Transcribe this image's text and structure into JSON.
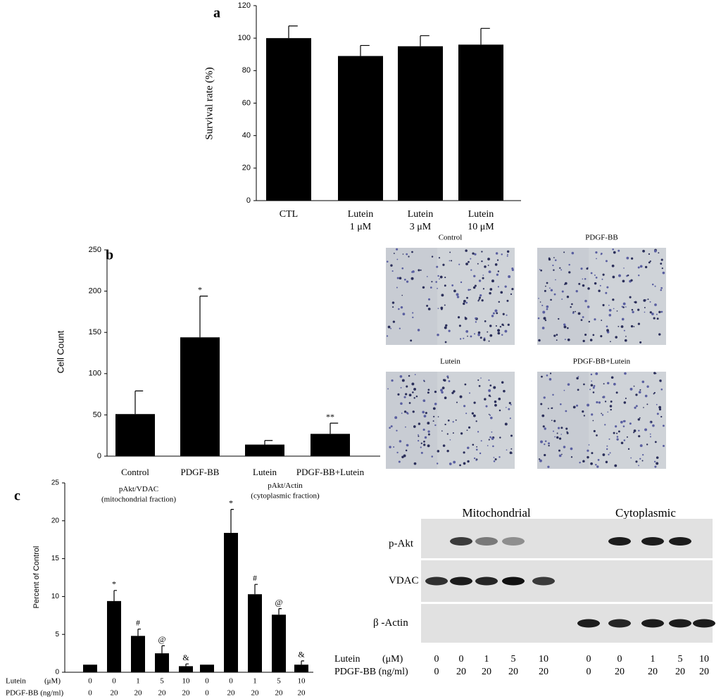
{
  "chart_data": [
    {
      "type": "bar",
      "label": "a",
      "y_label": "Survival rate (%)",
      "categories": [
        "CTL",
        "Lutein\n1 μM",
        "Lutein\n3 μM",
        "Lutein\n10 μM"
      ],
      "values": [
        100,
        89,
        95,
        96
      ],
      "errors": [
        7.5,
        6.5,
        6.5,
        10
      ],
      "color": "#000000",
      "ylim": [
        0,
        120
      ],
      "yticks": [
        0,
        20,
        40,
        60,
        80,
        100,
        120
      ]
    },
    {
      "type": "bar",
      "label": "b",
      "y_label": "Cell Count",
      "categories": [
        "Control",
        "PDGF-BB",
        "Lutein",
        "PDGF-BB+Lutein"
      ],
      "values": [
        51,
        144,
        14,
        27
      ],
      "errors": [
        28,
        50,
        5,
        13
      ],
      "annotations": [
        null,
        "*",
        null,
        "**"
      ],
      "color": "#000000",
      "ylim": [
        0,
        250
      ],
      "yticks": [
        0,
        50,
        100,
        150,
        200,
        250
      ]
    },
    {
      "type": "bar",
      "label": "c",
      "y_label": "Percent of Control",
      "group_labels": [
        "pAkt/VDAC\n(mitochondrial fraction)",
        "pAkt/Actin\n(cytoplasmic fraction)"
      ],
      "values": [
        1,
        9.4,
        4.8,
        2.5,
        0.8,
        1,
        18.4,
        10.3,
        7.6,
        1.0
      ],
      "errors": [
        0,
        1.4,
        0.9,
        1.0,
        0.3,
        0,
        3.1,
        1.3,
        0.8,
        0.5
      ],
      "annotations": [
        null,
        "*",
        "#",
        "@",
        "&",
        null,
        "*",
        "#",
        "@",
        "&"
      ],
      "conditions": [
        {
          "label": "Lutein",
          "unit": "(μM)",
          "values": [
            0,
            0,
            1,
            5,
            10,
            0,
            0,
            1,
            5,
            10
          ]
        },
        {
          "label": "PDGF-BB (ng/ml)",
          "values": [
            0,
            20,
            20,
            20,
            20,
            0,
            20,
            20,
            20,
            20
          ]
        }
      ],
      "color": "#000000",
      "ylim": [
        0,
        25
      ],
      "yticks": [
        0,
        5,
        10,
        15,
        20,
        25
      ]
    }
  ],
  "micrographs": [
    {
      "title": "Control"
    },
    {
      "title": "PDGF-BB"
    },
    {
      "title": "Lutein"
    },
    {
      "title": "PDGF-BB+Lutein"
    }
  ],
  "blot": {
    "groups": [
      "Mitochondrial",
      "Cytoplasmic"
    ],
    "rows": [
      "p-Akt",
      "VDAC",
      "β -Actin"
    ],
    "conditions": [
      {
        "label": "Lutein",
        "unit": "(μM)",
        "values": [
          0,
          0,
          1,
          5,
          10,
          0,
          0,
          1,
          5,
          10
        ]
      },
      {
        "label": "PDGF-BB (ng/ml)",
        "values": [
          0,
          20,
          20,
          20,
          20,
          0,
          20,
          20,
          20,
          20
        ]
      }
    ]
  }
}
